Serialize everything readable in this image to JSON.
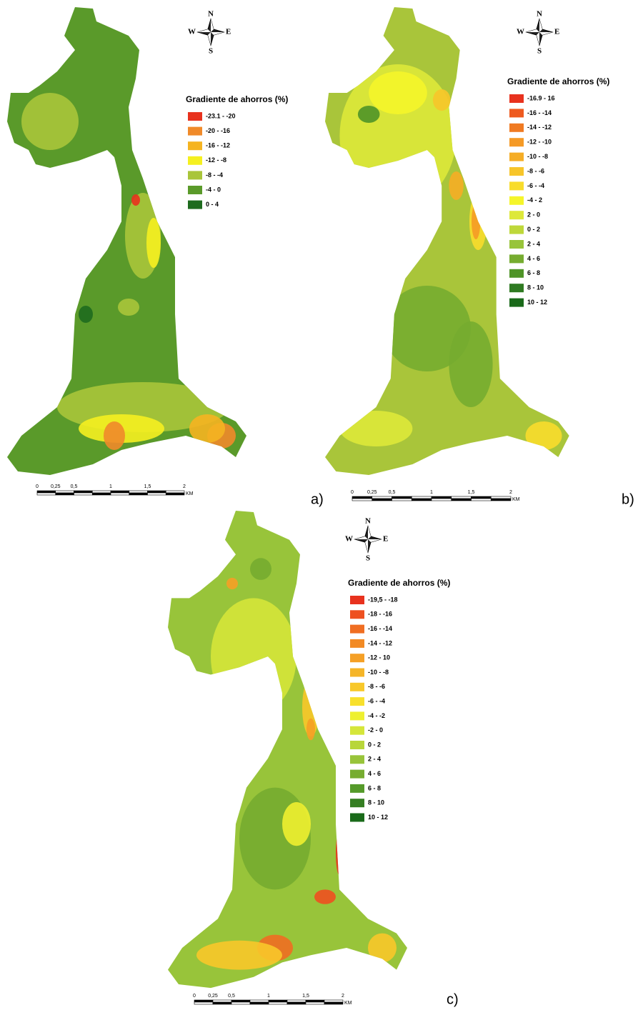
{
  "panels": [
    {
      "label": "a)",
      "compass": {
        "n": "N",
        "w": "W",
        "e": "E",
        "s": "S"
      },
      "legend": {
        "title": "Gradiente de ahorros (%)",
        "items": [
          {
            "label": "-23.1 - -20",
            "color": "#e8321e"
          },
          {
            "label": "-20 - -16",
            "color": "#f08a2a"
          },
          {
            "label": "-16 - -12",
            "color": "#f5b421"
          },
          {
            "label": "-12 - -8",
            "color": "#f5f020"
          },
          {
            "label": "-8 - -4",
            "color": "#a9c53a"
          },
          {
            "label": "-4 - 0",
            "color": "#5a9a2a"
          },
          {
            "label": "0 - 4",
            "color": "#1e6b1e"
          }
        ]
      },
      "scale": {
        "labels": [
          "0",
          "0,25",
          "0,5",
          "1",
          "1,5",
          "2",
          "KM"
        ]
      }
    },
    {
      "label": "b)",
      "compass": {
        "n": "N",
        "w": "W",
        "e": "E",
        "s": "S"
      },
      "legend": {
        "title": "Gradiente de ahorros (%)",
        "items": [
          {
            "label": "-16.9 - 16",
            "color": "#e8321e"
          },
          {
            "label": "-16 - -14",
            "color": "#ee5a1f"
          },
          {
            "label": "-14 - -12",
            "color": "#f07a22"
          },
          {
            "label": "-12 - -10",
            "color": "#f59a26"
          },
          {
            "label": "-10 - -8",
            "color": "#f5ad26"
          },
          {
            "label": "-8 - -6",
            "color": "#f7c52a"
          },
          {
            "label": "-6 - -4",
            "color": "#f8dc2c"
          },
          {
            "label": "-4 - 2",
            "color": "#f5f52a"
          },
          {
            "label": "2 - 0",
            "color": "#dde83a"
          },
          {
            "label": "0 - 2",
            "color": "#bed83a"
          },
          {
            "label": "2 - 4",
            "color": "#98c43a"
          },
          {
            "label": "4 - 6",
            "color": "#76ac30"
          },
          {
            "label": "6 - 8",
            "color": "#4f9428"
          },
          {
            "label": "8 - 10",
            "color": "#2f7a22"
          },
          {
            "label": "10 - 12",
            "color": "#1a6a1a"
          }
        ]
      },
      "scale": {
        "labels": [
          "0",
          "0,25",
          "0,5",
          "1",
          "1,5",
          "2",
          "KM"
        ]
      }
    },
    {
      "label": "c)",
      "compass": {
        "n": "N",
        "w": "W",
        "e": "E",
        "s": "S"
      },
      "legend": {
        "title": "Gradiente de ahorros (%)",
        "items": [
          {
            "label": "-19,5 - -18",
            "color": "#e8321e"
          },
          {
            "label": "-18 - -16",
            "color": "#ee5020"
          },
          {
            "label": "-16 - -14",
            "color": "#f06e22"
          },
          {
            "label": "-14 - -12",
            "color": "#f28a24"
          },
          {
            "label": "-12 - 10",
            "color": "#f5a026"
          },
          {
            "label": "-10 - -8",
            "color": "#f5b528"
          },
          {
            "label": "-8 - -6",
            "color": "#f8c82a"
          },
          {
            "label": "-6 - -4",
            "color": "#f8e02c"
          },
          {
            "label": "-4 - -2",
            "color": "#eef030"
          },
          {
            "label": "-2 - 0",
            "color": "#d5e63a"
          },
          {
            "label": "0 - 2",
            "color": "#b8d63a"
          },
          {
            "label": "2 - 4",
            "color": "#98c43a"
          },
          {
            "label": "4 - 6",
            "color": "#76ac30"
          },
          {
            "label": "6 - 8",
            "color": "#559a2a"
          },
          {
            "label": "8 - 10",
            "color": "#357e22"
          },
          {
            "label": "10 - 12",
            "color": "#1a6a1a"
          }
        ]
      },
      "scale": {
        "labels": [
          "0",
          "0,25",
          "0,5",
          "1",
          "1,5",
          "2",
          "KM"
        ]
      }
    }
  ]
}
